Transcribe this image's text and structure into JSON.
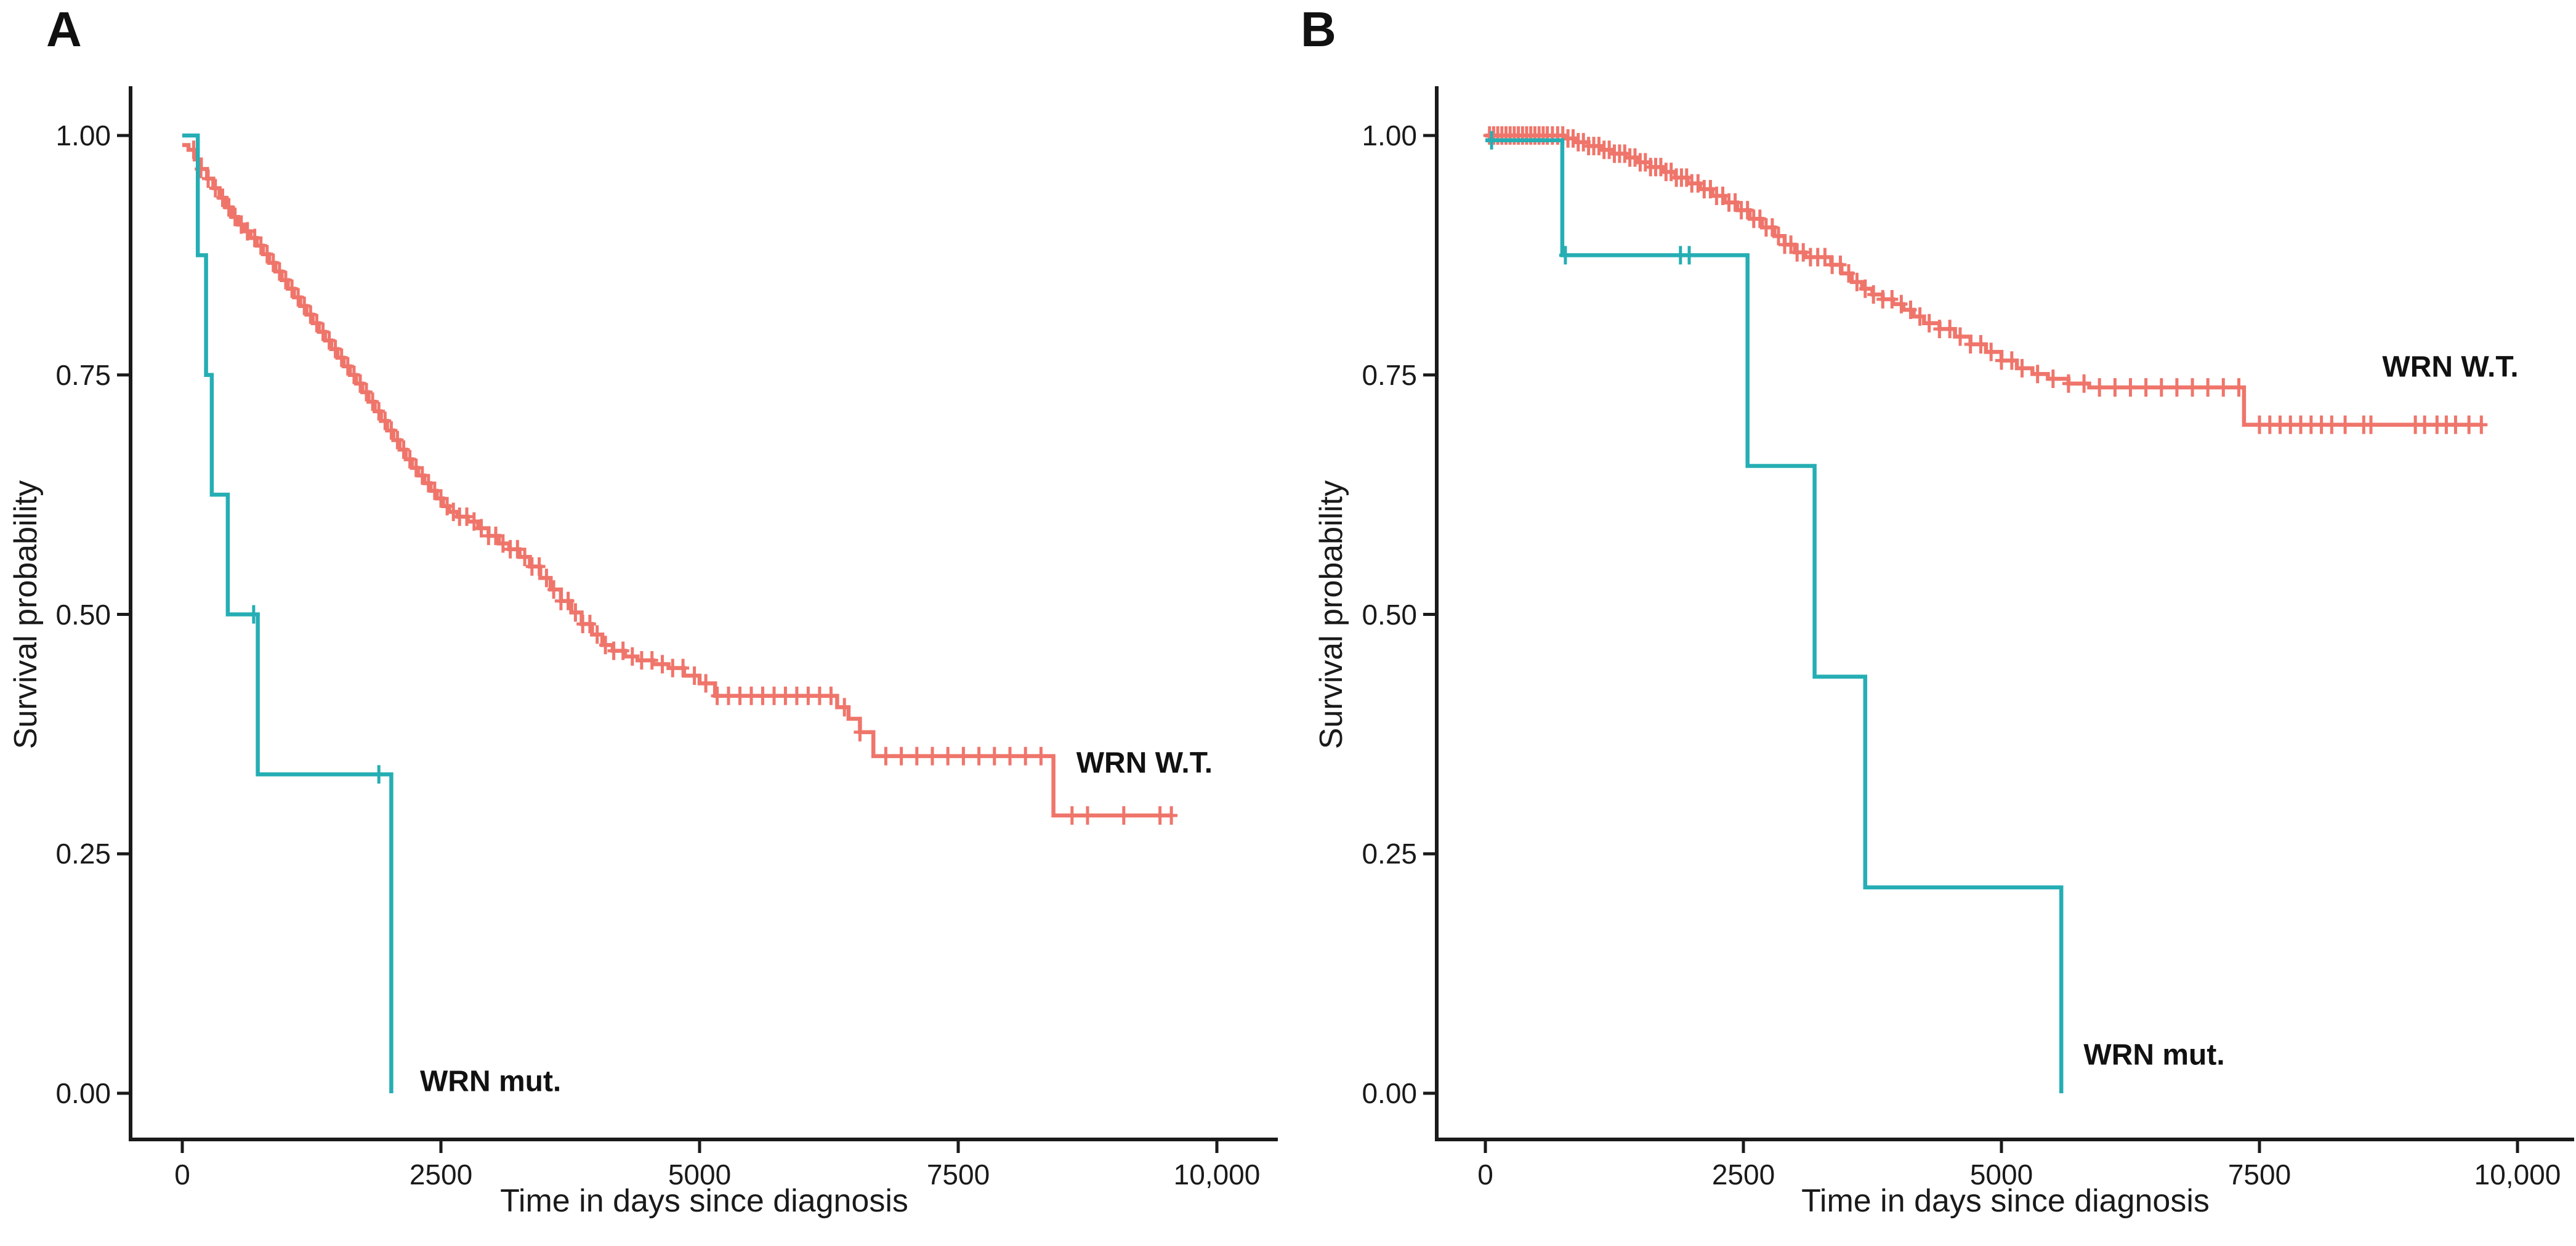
{
  "chart_data": [
    {
      "type": "line",
      "chart_style": "kaplan-meier-step",
      "panel_label": "A",
      "xlabel": "Time in days since diagnosis",
      "ylabel": "Survival probability",
      "xlim": [
        0,
        10000
      ],
      "ylim": [
        0.0,
        1.0
      ],
      "x_ticks": [
        0,
        2500,
        5000,
        7500,
        10000
      ],
      "x_tick_labels": [
        "0",
        "2500",
        "5000",
        "7500",
        "10,000"
      ],
      "y_ticks": [
        1.0,
        0.75,
        0.5,
        0.25,
        0.0
      ],
      "y_tick_labels": [
        "1.00",
        "0.75",
        "0.50",
        "0.25",
        "0.00"
      ],
      "grid": false,
      "legend": "curve-end annotations",
      "series": [
        {
          "name": "WRN W.T.",
          "color": "#EF756B",
          "label_pos": {
            "t": 9300,
            "s": 0.345
          },
          "points": [
            [
              0,
              0.99
            ],
            [
              60,
              0.985
            ],
            [
              120,
              0.975
            ],
            [
              180,
              0.965
            ],
            [
              240,
              0.955
            ],
            [
              300,
              0.945
            ],
            [
              360,
              0.935
            ],
            [
              420,
              0.925
            ],
            [
              480,
              0.915
            ],
            [
              540,
              0.907
            ],
            [
              600,
              0.9
            ],
            [
              660,
              0.893
            ],
            [
              720,
              0.885
            ],
            [
              780,
              0.876
            ],
            [
              840,
              0.867
            ],
            [
              900,
              0.858
            ],
            [
              960,
              0.849
            ],
            [
              1020,
              0.84
            ],
            [
              1080,
              0.831
            ],
            [
              1140,
              0.822
            ],
            [
              1200,
              0.813
            ],
            [
              1260,
              0.804
            ],
            [
              1320,
              0.795
            ],
            [
              1380,
              0.786
            ],
            [
              1440,
              0.777
            ],
            [
              1500,
              0.768
            ],
            [
              1560,
              0.759
            ],
            [
              1620,
              0.75
            ],
            [
              1680,
              0.741
            ],
            [
              1740,
              0.732
            ],
            [
              1800,
              0.722
            ],
            [
              1860,
              0.712
            ],
            [
              1920,
              0.702
            ],
            [
              1980,
              0.692
            ],
            [
              2040,
              0.682
            ],
            [
              2100,
              0.672
            ],
            [
              2160,
              0.662
            ],
            [
              2220,
              0.653
            ],
            [
              2280,
              0.645
            ],
            [
              2340,
              0.637
            ],
            [
              2400,
              0.629
            ],
            [
              2460,
              0.621
            ],
            [
              2520,
              0.613
            ],
            [
              2580,
              0.607
            ],
            [
              2660,
              0.602
            ],
            [
              2760,
              0.597
            ],
            [
              2860,
              0.59
            ],
            [
              2960,
              0.582
            ],
            [
              3060,
              0.574
            ],
            [
              3160,
              0.568
            ],
            [
              3260,
              0.56
            ],
            [
              3360,
              0.55
            ],
            [
              3460,
              0.538
            ],
            [
              3560,
              0.526
            ],
            [
              3660,
              0.514
            ],
            [
              3760,
              0.502
            ],
            [
              3860,
              0.49
            ],
            [
              3960,
              0.479
            ],
            [
              4060,
              0.468
            ],
            [
              4160,
              0.462
            ],
            [
              4280,
              0.456
            ],
            [
              4400,
              0.452
            ],
            [
              4550,
              0.448
            ],
            [
              4700,
              0.444
            ],
            [
              4850,
              0.436
            ],
            [
              5000,
              0.428
            ],
            [
              5150,
              0.415
            ],
            [
              6330,
              0.403
            ],
            [
              6440,
              0.391
            ],
            [
              6550,
              0.377
            ],
            [
              6680,
              0.352
            ],
            [
              8420,
              0.29
            ],
            [
              9560,
              0.29
            ]
          ],
          "censor_times": [
            110,
            180,
            250,
            320,
            390,
            450,
            510,
            570,
            630,
            700,
            760,
            820,
            880,
            940,
            1000,
            1060,
            1120,
            1180,
            1240,
            1300,
            1360,
            1420,
            1480,
            1540,
            1600,
            1660,
            1720,
            1780,
            1840,
            1900,
            1960,
            2020,
            2080,
            2140,
            2200,
            2260,
            2320,
            2380,
            2440,
            2500,
            2560,
            2620,
            2680,
            2750,
            2820,
            2890,
            2960,
            3030,
            3100,
            3170,
            3240,
            3310,
            3380,
            3450,
            3520,
            3590,
            3660,
            3730,
            3800,
            3870,
            3940,
            4010,
            4090,
            4170,
            4260,
            4350,
            4440,
            4540,
            4640,
            4740,
            4840,
            4950,
            5060,
            5170,
            5280,
            5390,
            5500,
            5610,
            5720,
            5830,
            5940,
            6050,
            6160,
            6270,
            6400,
            6550,
            6800,
            6950,
            7100,
            7250,
            7400,
            7550,
            7700,
            7850,
            8000,
            8150,
            8300,
            8600,
            8750,
            9100,
            9450,
            9560
          ]
        },
        {
          "name": "WRN mut.",
          "color": "#25AEB4",
          "label_pos": {
            "t": 2980,
            "s": 0.012
          },
          "points": [
            [
              0,
              1.0
            ],
            [
              150,
              0.875
            ],
            [
              230,
              0.75
            ],
            [
              285,
              0.625
            ],
            [
              440,
              0.5
            ],
            [
              730,
              0.333
            ],
            [
              2020,
              0.0
            ]
          ],
          "censor_times": [
            690,
            1900
          ]
        }
      ]
    },
    {
      "type": "line",
      "chart_style": "kaplan-meier-step",
      "panel_label": "B",
      "xlabel": "Time in days since diagnosis",
      "ylabel": "Survival probability",
      "xlim": [
        0,
        10000
      ],
      "ylim": [
        0.0,
        1.0
      ],
      "x_ticks": [
        0,
        2500,
        5000,
        7500,
        10000
      ],
      "x_tick_labels": [
        "0",
        "2500",
        "5000",
        "7500",
        "10,000"
      ],
      "y_ticks": [
        1.0,
        0.75,
        0.5,
        0.25,
        0.0
      ],
      "y_tick_labels": [
        "1.00",
        "0.75",
        "0.50",
        "0.25",
        "0.00"
      ],
      "grid": false,
      "legend": "curve-end annotations",
      "series": [
        {
          "name": "WRN W.T.",
          "color": "#EF756B",
          "label_pos": {
            "t": 9350,
            "s": 0.758
          },
          "points": [
            [
              0,
              1.0
            ],
            [
              760,
              0.997
            ],
            [
              880,
              0.993
            ],
            [
              1000,
              0.989
            ],
            [
              1120,
              0.985
            ],
            [
              1240,
              0.981
            ],
            [
              1360,
              0.977
            ],
            [
              1480,
              0.972
            ],
            [
              1600,
              0.967
            ],
            [
              1720,
              0.962
            ],
            [
              1840,
              0.956
            ],
            [
              1960,
              0.95
            ],
            [
              2080,
              0.944
            ],
            [
              2200,
              0.937
            ],
            [
              2320,
              0.93
            ],
            [
              2440,
              0.922
            ],
            [
              2560,
              0.913
            ],
            [
              2680,
              0.904
            ],
            [
              2800,
              0.895
            ],
            [
              2900,
              0.886
            ],
            [
              3000,
              0.878
            ],
            [
              3100,
              0.873
            ],
            [
              3350,
              0.865
            ],
            [
              3450,
              0.856
            ],
            [
              3550,
              0.847
            ],
            [
              3650,
              0.84
            ],
            [
              3750,
              0.834
            ],
            [
              3850,
              0.829
            ],
            [
              3950,
              0.824
            ],
            [
              4050,
              0.818
            ],
            [
              4150,
              0.811
            ],
            [
              4250,
              0.804
            ],
            [
              4400,
              0.798
            ],
            [
              4550,
              0.79
            ],
            [
              4700,
              0.782
            ],
            [
              4850,
              0.774
            ],
            [
              5000,
              0.765
            ],
            [
              5150,
              0.757
            ],
            [
              5300,
              0.751
            ],
            [
              5450,
              0.746
            ],
            [
              5650,
              0.741
            ],
            [
              5850,
              0.737
            ],
            [
              7350,
              0.698
            ],
            [
              9650,
              0.698
            ]
          ],
          "censor_times": [
            40,
            80,
            120,
            160,
            200,
            240,
            280,
            320,
            360,
            400,
            440,
            480,
            520,
            560,
            600,
            650,
            700,
            750,
            800,
            850,
            900,
            950,
            1000,
            1050,
            1100,
            1150,
            1200,
            1250,
            1300,
            1350,
            1400,
            1450,
            1500,
            1550,
            1600,
            1650,
            1700,
            1750,
            1800,
            1850,
            1900,
            1950,
            2000,
            2060,
            2120,
            2180,
            2240,
            2300,
            2360,
            2420,
            2480,
            2540,
            2600,
            2660,
            2720,
            2780,
            2840,
            2900,
            2960,
            3020,
            3080,
            3150,
            3220,
            3290,
            3360,
            3440,
            3520,
            3600,
            3680,
            3760,
            3850,
            3940,
            4030,
            4120,
            4210,
            4300,
            4400,
            4500,
            4600,
            4700,
            4800,
            4900,
            5000,
            5100,
            5200,
            5350,
            5500,
            5650,
            5800,
            5950,
            6100,
            6250,
            6400,
            6550,
            6700,
            6850,
            7000,
            7150,
            7300,
            7500,
            7600,
            7700,
            7800,
            7900,
            8000,
            8100,
            8200,
            8330,
            8510,
            8580,
            9010,
            9100,
            9220,
            9310,
            9400,
            9530,
            9650
          ]
        },
        {
          "name": "WRN mut.",
          "color": "#25AEB4",
          "label_pos": {
            "t": 6480,
            "s": 0.04
          },
          "points": [
            [
              0,
              0.995
            ],
            [
              745,
              0.875
            ],
            [
              2540,
              0.655
            ],
            [
              3190,
              0.435
            ],
            [
              3680,
              0.215
            ],
            [
              5580,
              0.0
            ]
          ],
          "censor_times": [
            60,
            775,
            1890,
            1975
          ]
        }
      ]
    }
  ],
  "style": {
    "background": "#ffffff",
    "axis_color": "#1a1a1a",
    "wt_color": "#EF756B",
    "mut_color": "#25AEB4"
  }
}
